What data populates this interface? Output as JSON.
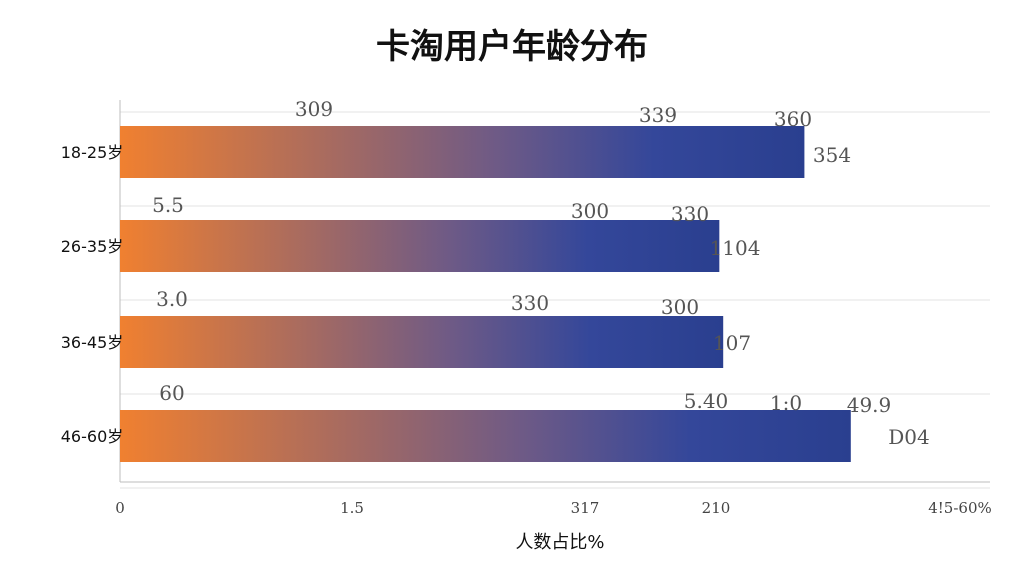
{
  "chart_data": {
    "type": "bar",
    "orientation": "horizontal",
    "title": "卡淘用户年龄分布",
    "xlabel": "人数占比%",
    "ylabel": "",
    "categories": [
      "18-25岁",
      "26-35岁",
      "36-45岁",
      "46-60岁"
    ],
    "values": [
      354,
      310,
      312,
      378
    ],
    "xlim": [
      0,
      450
    ],
    "x_tick_labels": [
      "0",
      "1.5",
      "317",
      "210",
      "4!5-60%"
    ],
    "grid": true,
    "colors": {
      "gradient_start": "#f08030",
      "gradient_end": "#2a3f8f"
    },
    "data_labels": [
      [
        "309",
        "339",
        "360",
        "354"
      ],
      [
        "5.5",
        "300",
        "330",
        "1104"
      ],
      [
        "3.0",
        "330",
        "300",
        "107"
      ],
      [
        "60",
        "5.40",
        "1:0",
        "49.9",
        "D04"
      ]
    ]
  }
}
